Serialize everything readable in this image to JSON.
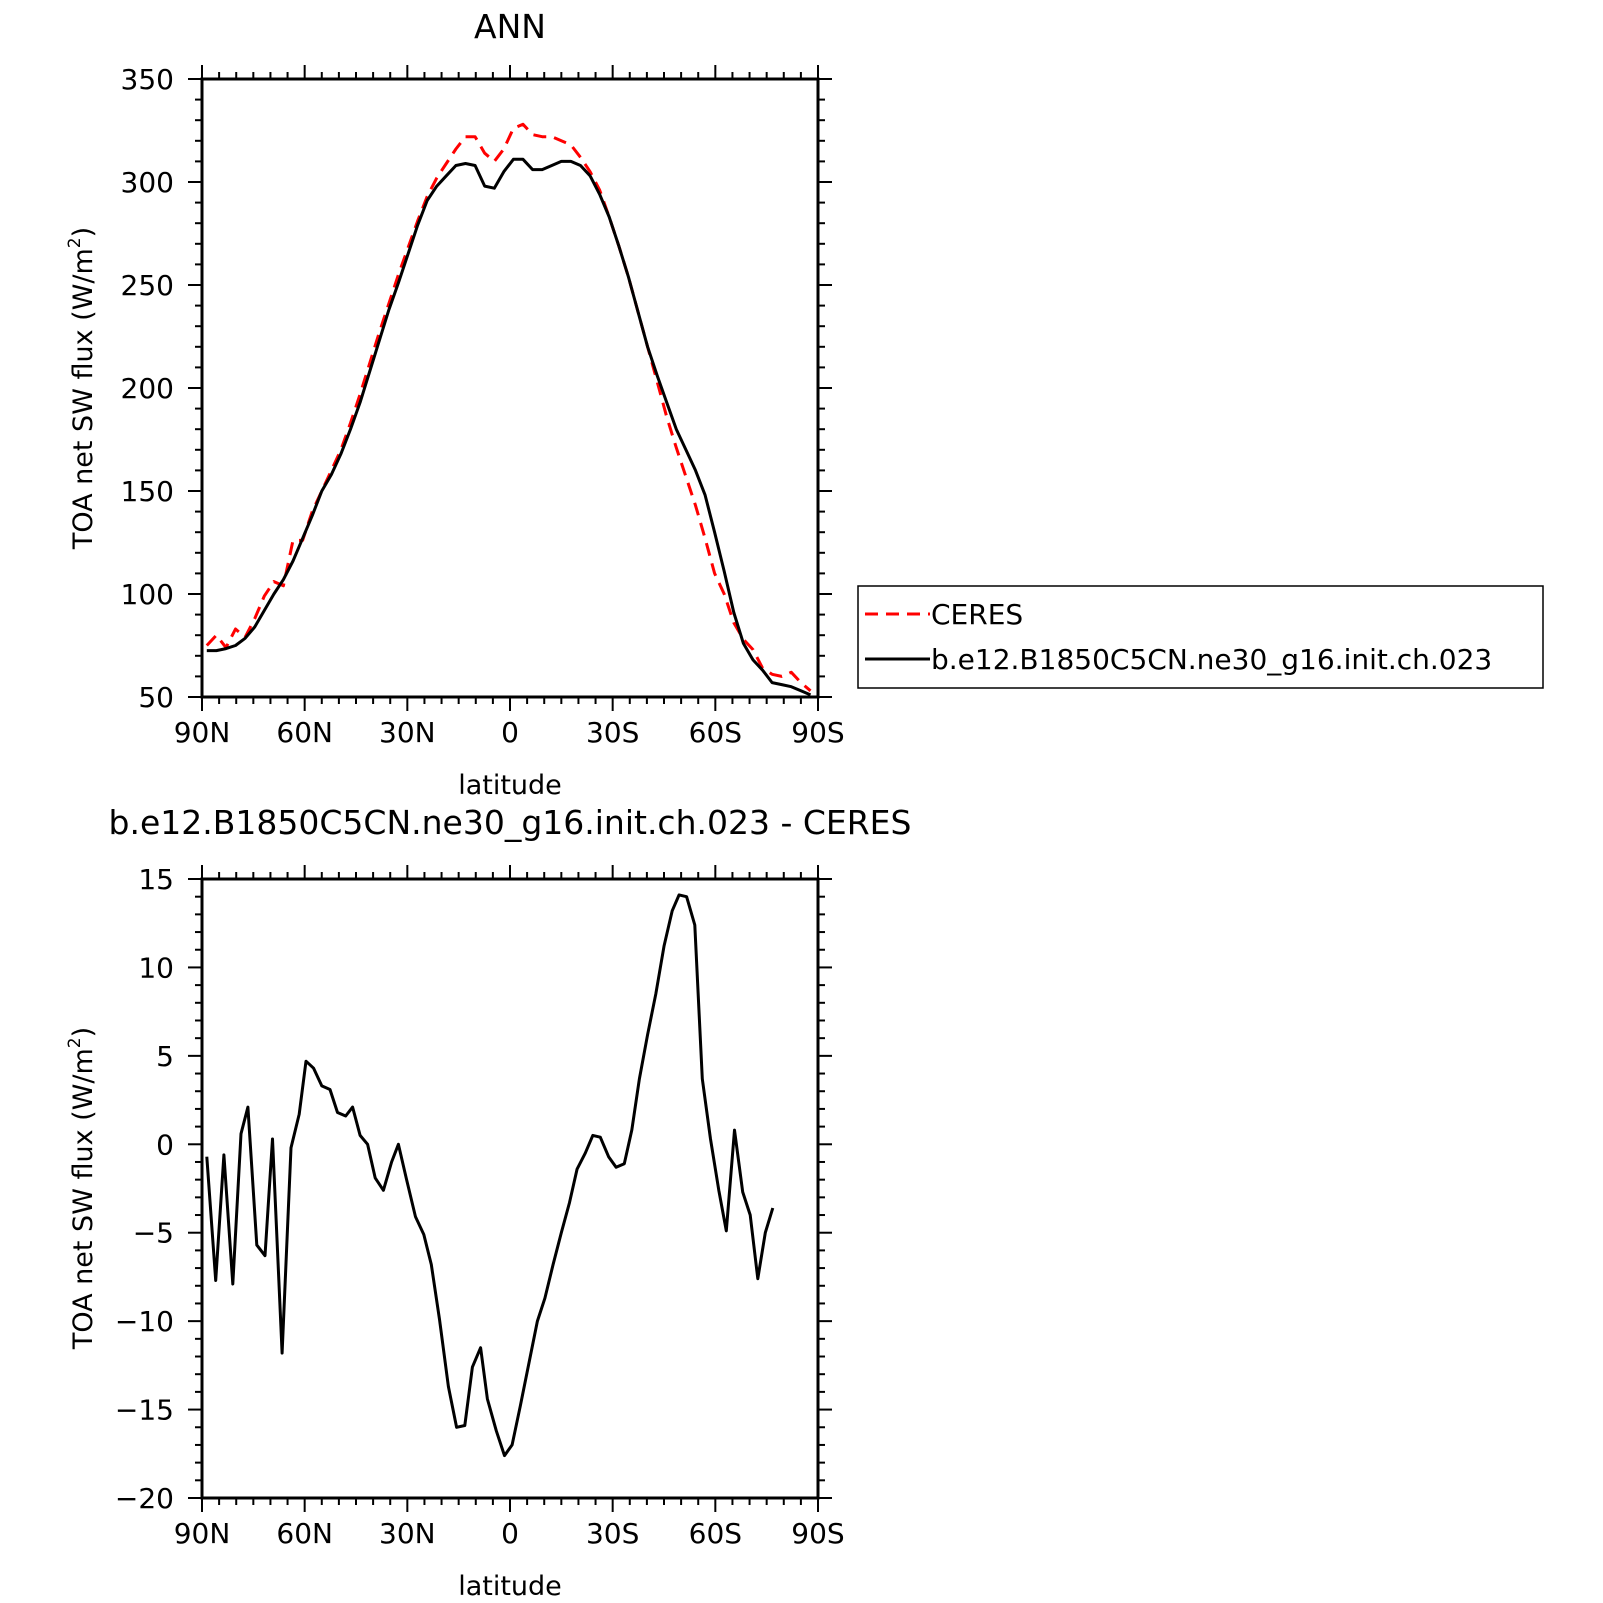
{
  "chart_data": [
    {
      "type": "line",
      "title": "ANN",
      "xlabel": "latitude",
      "ylabel": "TOA net SW flux (W/m²)",
      "ylabel_main": "TOA net SW flux (W/m",
      "ylabel_sup": "2",
      "ylabel_close": ")",
      "ylim": [
        50,
        350
      ],
      "xlim": [
        90,
        -90
      ],
      "yticks": [
        50,
        100,
        150,
        200,
        250,
        300,
        350
      ],
      "xticks": [
        {
          "value": 90,
          "label": "90N"
        },
        {
          "value": 60,
          "label": "60N"
        },
        {
          "value": 30,
          "label": "30N"
        },
        {
          "value": 0,
          "label": "0"
        },
        {
          "value": -30,
          "label": "30S"
        },
        {
          "value": -60,
          "label": "60S"
        },
        {
          "value": -90,
          "label": "90S"
        }
      ],
      "grid": false,
      "legend_position": "right",
      "series": [
        {
          "name": "CERES",
          "color": "#ff0000",
          "style": "dashed",
          "points": [
            [
              88.6,
              75
            ],
            [
              85.8,
              80
            ],
            [
              83,
              74
            ],
            [
              80.2,
              83
            ],
            [
              77.4,
              79
            ],
            [
              74.6,
              88
            ],
            [
              71.8,
              99
            ],
            [
              69,
              106
            ],
            [
              66.2,
              104
            ],
            [
              63.4,
              126
            ],
            [
              60.6,
              126
            ],
            [
              57.8,
              140
            ],
            [
              55,
              150
            ],
            [
              52.2,
              160
            ],
            [
              49.4,
              170
            ],
            [
              46.6,
              183
            ],
            [
              43.8,
              197
            ],
            [
              41,
              212
            ],
            [
              38.2,
              227
            ],
            [
              35.4,
              241
            ],
            [
              32.6,
              255
            ],
            [
              29.8,
              268
            ],
            [
              27,
              281
            ],
            [
              24.2,
              293
            ],
            [
              21.4,
              302
            ],
            [
              18.6,
              309
            ],
            [
              15.8,
              316
            ],
            [
              13,
              322
            ],
            [
              10.2,
              322
            ],
            [
              7.4,
              314
            ],
            [
              4.6,
              310
            ],
            [
              1.8,
              316
            ],
            [
              -1,
              326
            ],
            [
              -3.8,
              328
            ],
            [
              -6.6,
              323
            ],
            [
              -9.4,
              322
            ],
            [
              -12.2,
              322
            ],
            [
              -15,
              320
            ],
            [
              -17.8,
              318
            ],
            [
              -20.6,
              312
            ],
            [
              -23.4,
              305
            ],
            [
              -26.2,
              296
            ],
            [
              -29,
              283
            ],
            [
              -31.8,
              269
            ],
            [
              -34.6,
              254
            ],
            [
              -37.4,
              237
            ],
            [
              -40.2,
              220
            ],
            [
              -43,
              203
            ],
            [
              -45.8,
              186
            ],
            [
              -48.6,
              171
            ],
            [
              -51.4,
              157
            ],
            [
              -54.2,
              143
            ],
            [
              -57,
              127
            ],
            [
              -59.8,
              110
            ],
            [
              -62.6,
              100
            ],
            [
              -65.4,
              86
            ],
            [
              -68.2,
              78
            ],
            [
              -71,
              73
            ],
            [
              -73.8,
              64
            ],
            [
              -76.6,
              61
            ],
            [
              -79.4,
              60
            ],
            [
              -82.2,
              62
            ],
            [
              -85,
              57
            ],
            [
              -87.8,
              53
            ]
          ]
        },
        {
          "name": "b.e12.B1850C5CN.ne30_g16.init.ch.023",
          "color": "#000000",
          "style": "solid",
          "points": [
            [
              88.6,
              72.5
            ],
            [
              85.8,
              72.5
            ],
            [
              83,
              73.5
            ],
            [
              80.2,
              75
            ],
            [
              77.4,
              78.5
            ],
            [
              74.6,
              84
            ],
            [
              71.8,
              92
            ],
            [
              69,
              100
            ],
            [
              66.2,
              107
            ],
            [
              63.4,
              116
            ],
            [
              60.6,
              127
            ],
            [
              57.8,
              138
            ],
            [
              55,
              150
            ],
            [
              52.2,
              158
            ],
            [
              49.4,
              168
            ],
            [
              46.6,
              180
            ],
            [
              43.8,
              193
            ],
            [
              41,
              208
            ],
            [
              38.2,
              223
            ],
            [
              35.4,
              238
            ],
            [
              32.6,
              251
            ],
            [
              29.8,
              265
            ],
            [
              27,
              279
            ],
            [
              24.2,
              291
            ],
            [
              21.4,
              298
            ],
            [
              18.6,
              303
            ],
            [
              15.8,
              308
            ],
            [
              13,
              309
            ],
            [
              10.2,
              308
            ],
            [
              7.4,
              298
            ],
            [
              4.6,
              297
            ],
            [
              1.8,
              305
            ],
            [
              -1,
              311
            ],
            [
              -3.8,
              311
            ],
            [
              -6.6,
              306
            ],
            [
              -9.4,
              306
            ],
            [
              -12.2,
              308
            ],
            [
              -15,
              310
            ],
            [
              -17.8,
              310
            ],
            [
              -20.6,
              308
            ],
            [
              -23.4,
              303
            ],
            [
              -26.2,
              294
            ],
            [
              -29,
              283
            ],
            [
              -31.8,
              269
            ],
            [
              -34.6,
              254
            ],
            [
              -37.4,
              237
            ],
            [
              -40.2,
              220
            ],
            [
              -43,
              206
            ],
            [
              -45.8,
              193
            ],
            [
              -48.6,
              180
            ],
            [
              -51.4,
              170
            ],
            [
              -54.2,
              160
            ],
            [
              -57,
              148
            ],
            [
              -59.8,
              130
            ],
            [
              -62.6,
              111
            ],
            [
              -65.4,
              91
            ],
            [
              -68.2,
              76
            ],
            [
              -71,
              68
            ],
            [
              -73.8,
              63
            ],
            [
              -76.6,
              57
            ],
            [
              -79.4,
              56
            ],
            [
              -82.2,
              55
            ],
            [
              -85,
              53
            ],
            [
              -87.8,
              51
            ]
          ]
        }
      ]
    },
    {
      "type": "line",
      "title": "b.e12.B1850C5CN.ne30_g16.init.ch.023 - CERES",
      "xlabel": "latitude",
      "ylabel": "TOA net SW flux (W/m²)",
      "ylabel_main": "TOA net SW flux (W/m",
      "ylabel_sup": "2",
      "ylabel_close": ")",
      "ylim": [
        -20,
        15
      ],
      "xlim": [
        90,
        -90
      ],
      "yticks": [
        -20,
        -15,
        -10,
        -5,
        0,
        5,
        10,
        15
      ],
      "ytick_labels": [
        "−20",
        "−15",
        "−10",
        "−5",
        "0",
        "5",
        "10",
        "15"
      ],
      "xticks": [
        {
          "value": 90,
          "label": "90N"
        },
        {
          "value": 60,
          "label": "60N"
        },
        {
          "value": 30,
          "label": "30N"
        },
        {
          "value": 0,
          "label": "0"
        },
        {
          "value": -30,
          "label": "30S"
        },
        {
          "value": -60,
          "label": "60S"
        },
        {
          "value": -90,
          "label": "90S"
        }
      ],
      "grid": false,
      "series": [
        {
          "color": "#000000",
          "style": "solid",
          "points": [
            [
              88.6,
              -0.7
            ],
            [
              86,
              -7.7
            ],
            [
              83.6,
              -0.6
            ],
            [
              81,
              -7.9
            ],
            [
              78.6,
              0.6
            ],
            [
              76.6,
              2.1
            ],
            [
              74,
              -5.7
            ],
            [
              71.6,
              -6.3
            ],
            [
              69.4,
              0.3
            ],
            [
              66.6,
              -11.8
            ],
            [
              64,
              -0.2
            ],
            [
              61.6,
              1.7
            ],
            [
              59.6,
              4.7
            ],
            [
              57.4,
              4.3
            ],
            [
              55,
              3.3
            ],
            [
              52.6,
              3.1
            ],
            [
              50.4,
              1.8
            ],
            [
              48,
              1.6
            ],
            [
              46,
              2.1
            ],
            [
              43.8,
              0.5
            ],
            [
              41.6,
              0
            ],
            [
              39.4,
              -1.9
            ],
            [
              37,
              -2.6
            ],
            [
              34.6,
              -1
            ],
            [
              32.6,
              0
            ],
            [
              30.2,
              -2
            ],
            [
              27.6,
              -4.1
            ],
            [
              25.2,
              -5.1
            ],
            [
              23,
              -6.8
            ],
            [
              20.6,
              -9.9
            ],
            [
              18,
              -13.7
            ],
            [
              15.6,
              -16
            ],
            [
              13.2,
              -15.9
            ],
            [
              11,
              -12.6
            ],
            [
              8.6,
              -11.5
            ],
            [
              6.6,
              -14.4
            ],
            [
              4,
              -16.2
            ],
            [
              1.6,
              -17.6
            ],
            [
              -0.6,
              -17
            ],
            [
              -3,
              -14.8
            ],
            [
              -5.6,
              -12.3
            ],
            [
              -8,
              -10
            ],
            [
              -10.2,
              -8.7
            ],
            [
              -12.6,
              -6.8
            ],
            [
              -15,
              -5
            ],
            [
              -17.4,
              -3.3
            ],
            [
              -19.6,
              -1.4
            ],
            [
              -22,
              -0.5
            ],
            [
              -24.2,
              0.5
            ],
            [
              -26.4,
              0.4
            ],
            [
              -28.8,
              -0.7
            ],
            [
              -31,
              -1.3
            ],
            [
              -33.4,
              -1.1
            ],
            [
              -35.6,
              0.8
            ],
            [
              -37.8,
              3.7
            ],
            [
              -40.2,
              6.2
            ],
            [
              -42.6,
              8.5
            ],
            [
              -45,
              11.2
            ],
            [
              -47.4,
              13.2
            ],
            [
              -49.4,
              14.1
            ],
            [
              -51.6,
              14
            ],
            [
              -54,
              12.4
            ],
            [
              -56.2,
              3.7
            ],
            [
              -58.6,
              0.3
            ],
            [
              -61,
              -2.6
            ],
            [
              -63.2,
              -4.9
            ],
            [
              -65.6,
              0.8
            ],
            [
              -68,
              -2.7
            ],
            [
              -70.2,
              -4
            ],
            [
              -72.4,
              -7.6
            ],
            [
              -74.6,
              -5
            ],
            [
              -76.8,
              -3.6
            ]
          ]
        }
      ]
    }
  ]
}
